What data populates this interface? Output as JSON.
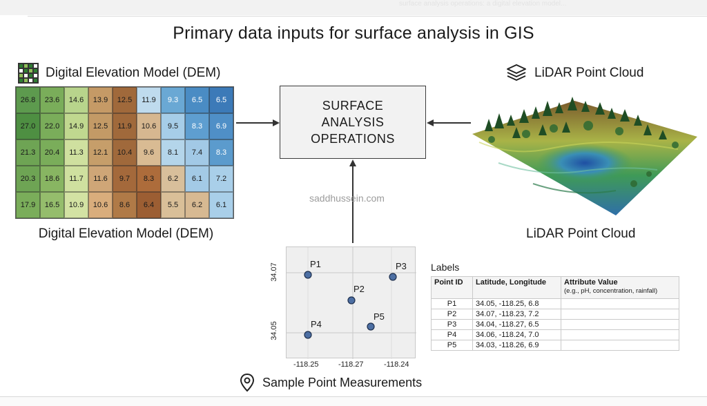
{
  "title": "Primary data inputs for surface analysis in GIS",
  "top_strip_text": "surface analysis operations: a digital elevation model...",
  "dem": {
    "heading": "Digital Elevation Model (DEM)",
    "caption": "Digital Elevation Model (DEM)",
    "icon": "grid-icon",
    "rows": [
      [
        "26.8",
        "23.6",
        "14.6",
        "13.9",
        "12.5",
        "11.9",
        "9.3",
        "6.5",
        "6.5"
      ],
      [
        "27.0",
        "22.0",
        "14.9",
        "12.5",
        "11.9",
        "10.6",
        "9.5",
        "8.3",
        "6.9"
      ],
      [
        "21.3",
        "20.4",
        "11.3",
        "12.1",
        "10.4",
        "9.6",
        "8.1",
        "7.4",
        "8.3"
      ],
      [
        "20.3",
        "18.6",
        "11.7",
        "11.6",
        "9.7",
        "8.3",
        "6.2",
        "6.1",
        "7.2"
      ],
      [
        "17.9",
        "16.5",
        "10.9",
        "10.6",
        "8.6",
        "6.4",
        "5.5",
        "6.2",
        "6.1"
      ]
    ],
    "colors": [
      [
        "#5d9a4e",
        "#7aad5a",
        "#b8d48c",
        "#c59a66",
        "#a0693b",
        "#bfdbee",
        "#6aa8d4",
        "#4a8cc4",
        "#3c7ab8"
      ],
      [
        "#4e8f42",
        "#7aad5a",
        "#c0d88f",
        "#c39a66",
        "#a0693b",
        "#d6b790",
        "#a6cde8",
        "#5e9ed0",
        "#4f8fc7"
      ],
      [
        "#6ea454",
        "#7aad5a",
        "#cfe09f",
        "#c69e6a",
        "#a0693b",
        "#d9bb93",
        "#b4d5ea",
        "#a2c9e6",
        "#5b9bcd"
      ],
      [
        "#6ea454",
        "#88b562",
        "#cfe09f",
        "#cfa677",
        "#a4693b",
        "#ad6c3b",
        "#d8bf9b",
        "#a3cae6",
        "#a9cfe9"
      ],
      [
        "#7aad5a",
        "#95bd6c",
        "#d3e2a3",
        "#d9ad7c",
        "#b07a47",
        "#9c5e33",
        "#d9bf98",
        "#d7b992",
        "#a9cfe9"
      ]
    ],
    "light_text_cells": [
      [
        0,
        6
      ],
      [
        0,
        7
      ],
      [
        0,
        8
      ],
      [
        1,
        7
      ],
      [
        1,
        8
      ],
      [
        2,
        8
      ]
    ]
  },
  "center_box": {
    "label": "SURFACE\nANALYSIS\nOPERATIONS"
  },
  "watermark": "saddhussein.com",
  "lidar": {
    "heading": "LiDAR Point Cloud",
    "caption": "LiDAR Point Cloud",
    "icon": "layers-icon"
  },
  "sample": {
    "heading": "Sample Point Measurements",
    "icon": "map-pin-icon",
    "y_ticks": [
      "34.07",
      "34.05"
    ],
    "x_ticks": [
      "-118.25",
      "-118.27",
      "-118.24"
    ],
    "point_labels": [
      "P1",
      "P2",
      "P3",
      "P4",
      "P5"
    ],
    "point_color": "#4d6fa3"
  },
  "table": {
    "title": "Labels",
    "headers": {
      "id": "Point ID",
      "latlon": "Latitude, Longitude",
      "attr": "Attribute Value",
      "attr_sub": "(e.g., pH, concentration, rainfall)"
    },
    "rows": [
      {
        "id": "P1",
        "latlon": "34.05,  -118.25,  6.8",
        "attr": ""
      },
      {
        "id": "P2",
        "latlon": "34.07,  -118.23,  7.2",
        "attr": ""
      },
      {
        "id": "P3",
        "latlon": "34.04,  -118.27,  6.5",
        "attr": ""
      },
      {
        "id": "P4",
        "latlon": "34.06,  -118.24,  7.0",
        "attr": ""
      },
      {
        "id": "P5",
        "latlon": "34.03,  -118.26,  6.9",
        "attr": ""
      }
    ]
  }
}
